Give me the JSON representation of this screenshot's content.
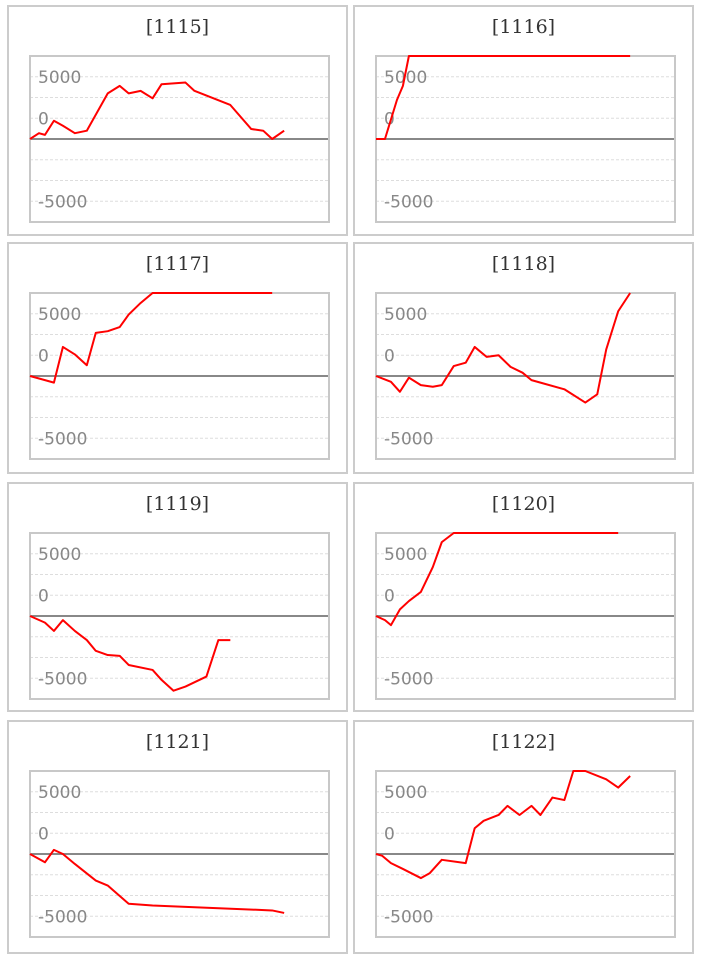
{
  "chart_data": [
    {
      "type": "line",
      "title": "[1115]",
      "ylim": [
        -10000,
        10000
      ],
      "xlim": [
        0,
        100
      ],
      "yticks": [
        5000,
        0,
        -5000
      ],
      "grid": true,
      "line_color": "#ff0000",
      "x": [
        0,
        3,
        5,
        8,
        11,
        15,
        19,
        26,
        30,
        33,
        37,
        41,
        44,
        52,
        55,
        67,
        74,
        78,
        81,
        85
      ],
      "y": [
        0,
        700,
        500,
        2200,
        1600,
        700,
        1000,
        5500,
        6400,
        5500,
        5800,
        4900,
        6600,
        6800,
        5800,
        4100,
        1200,
        1000,
        0,
        1000
      ]
    },
    {
      "type": "line",
      "title": "[1116]",
      "ylim": [
        -10000,
        10000
      ],
      "xlim": [
        0,
        100
      ],
      "yticks": [
        5000,
        0,
        -5000
      ],
      "grid": true,
      "line_color": "#ff0000",
      "x": [
        0,
        3,
        7,
        9,
        11,
        85
      ],
      "y": [
        0,
        0,
        4700,
        6400,
        10000,
        10000
      ]
    },
    {
      "type": "line",
      "title": "[1117]",
      "ylim": [
        -10000,
        10000
      ],
      "xlim": [
        0,
        100
      ],
      "yticks": [
        5000,
        0,
        -5000
      ],
      "grid": true,
      "line_color": "#ff0000",
      "x": [
        0,
        8,
        11,
        15,
        19,
        22,
        26,
        30,
        33,
        37,
        41,
        81
      ],
      "y": [
        0,
        -800,
        3500,
        2600,
        1300,
        5200,
        5400,
        5900,
        7400,
        8800,
        10000,
        10000
      ]
    },
    {
      "type": "line",
      "title": "[1118]",
      "ylim": [
        -10000,
        10000
      ],
      "xlim": [
        0,
        100
      ],
      "yticks": [
        5000,
        0,
        -5000
      ],
      "grid": true,
      "line_color": "#ff0000",
      "x": [
        0,
        5,
        8,
        11,
        15,
        19,
        22,
        26,
        30,
        33,
        37,
        41,
        45,
        49,
        52,
        55,
        63,
        70,
        74,
        77,
        81,
        85
      ],
      "y": [
        0,
        -700,
        -1900,
        -200,
        -1100,
        -1300,
        -1100,
        1200,
        1600,
        3500,
        2300,
        2500,
        1100,
        400,
        -500,
        -800,
        -1600,
        -3200,
        -2200,
        3200,
        7800,
        10000
      ]
    },
    {
      "type": "line",
      "title": "[1119]",
      "ylim": [
        -10000,
        10000
      ],
      "xlim": [
        0,
        100
      ],
      "yticks": [
        5000,
        0,
        -5000
      ],
      "grid": true,
      "line_color": "#ff0000",
      "x": [
        0,
        5,
        8,
        11,
        15,
        19,
        22,
        26,
        30,
        33,
        41,
        44,
        48,
        52,
        59,
        63,
        67
      ],
      "y": [
        0,
        -800,
        -1800,
        -500,
        -1800,
        -2900,
        -4200,
        -4700,
        -4800,
        -5900,
        -6500,
        -7700,
        -9000,
        -8500,
        -7300,
        -2900,
        -2900
      ]
    },
    {
      "type": "line",
      "title": "[1120]",
      "ylim": [
        -10000,
        10000
      ],
      "xlim": [
        0,
        100
      ],
      "yticks": [
        5000,
        0,
        -5000
      ],
      "grid": true,
      "line_color": "#ff0000",
      "x": [
        0,
        3,
        5,
        8,
        11,
        15,
        19,
        22,
        26,
        81
      ],
      "y": [
        0,
        -500,
        -1100,
        800,
        1800,
        2900,
        5900,
        8900,
        10000,
        10000
      ]
    },
    {
      "type": "line",
      "title": "[1121]",
      "ylim": [
        -10000,
        10000
      ],
      "xlim": [
        0,
        100
      ],
      "yticks": [
        5000,
        0,
        -5000
      ],
      "grid": true,
      "line_color": "#ff0000",
      "x": [
        0,
        5,
        8,
        11,
        15,
        22,
        26,
        33,
        41,
        81,
        85
      ],
      "y": [
        0,
        -1000,
        500,
        0,
        -1200,
        -3200,
        -3800,
        -6000,
        -6200,
        -6800,
        -7100
      ]
    },
    {
      "type": "line",
      "title": "[1122]",
      "ylim": [
        -10000,
        10000
      ],
      "xlim": [
        0,
        100
      ],
      "yticks": [
        5000,
        0,
        -5000
      ],
      "grid": true,
      "line_color": "#ff0000",
      "x": [
        0,
        2,
        5,
        9,
        15,
        18,
        22,
        30,
        33,
        36,
        41,
        44,
        48,
        52,
        55,
        59,
        63,
        66,
        70,
        77,
        81,
        85
      ],
      "y": [
        0,
        -200,
        -1100,
        -1800,
        -2900,
        -2300,
        -700,
        -1100,
        3100,
        4000,
        4700,
        5800,
        4700,
        5800,
        4700,
        6800,
        6500,
        10000,
        10000,
        9000,
        8000,
        9400
      ]
    }
  ]
}
